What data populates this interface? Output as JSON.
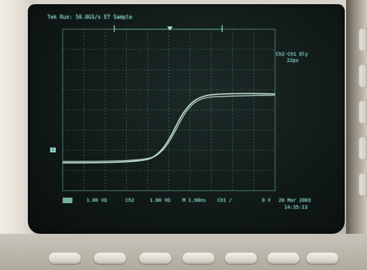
{
  "screen": {
    "header": "Tek Run: 50.0GS/s ET Sample",
    "measurement": {
      "line1": "Ch2-Ch1 Dly",
      "line2": "22ps"
    },
    "channel_marker": "1",
    "status_bar": {
      "ch1_scale": "1.00 VΩ",
      "ch2_label": "Ch2",
      "ch2_scale": "1.00 VΩ",
      "timebase": "M 1.00ns",
      "trigger": "Ch1 ∕",
      "trigger_level": "0 V",
      "date": "20 Mar 2003",
      "time": "14:35:13"
    }
  },
  "colors": {
    "trace": "#cfeee2",
    "grid": "#7fcfb8",
    "screen_text": "#8fd6c3"
  }
}
